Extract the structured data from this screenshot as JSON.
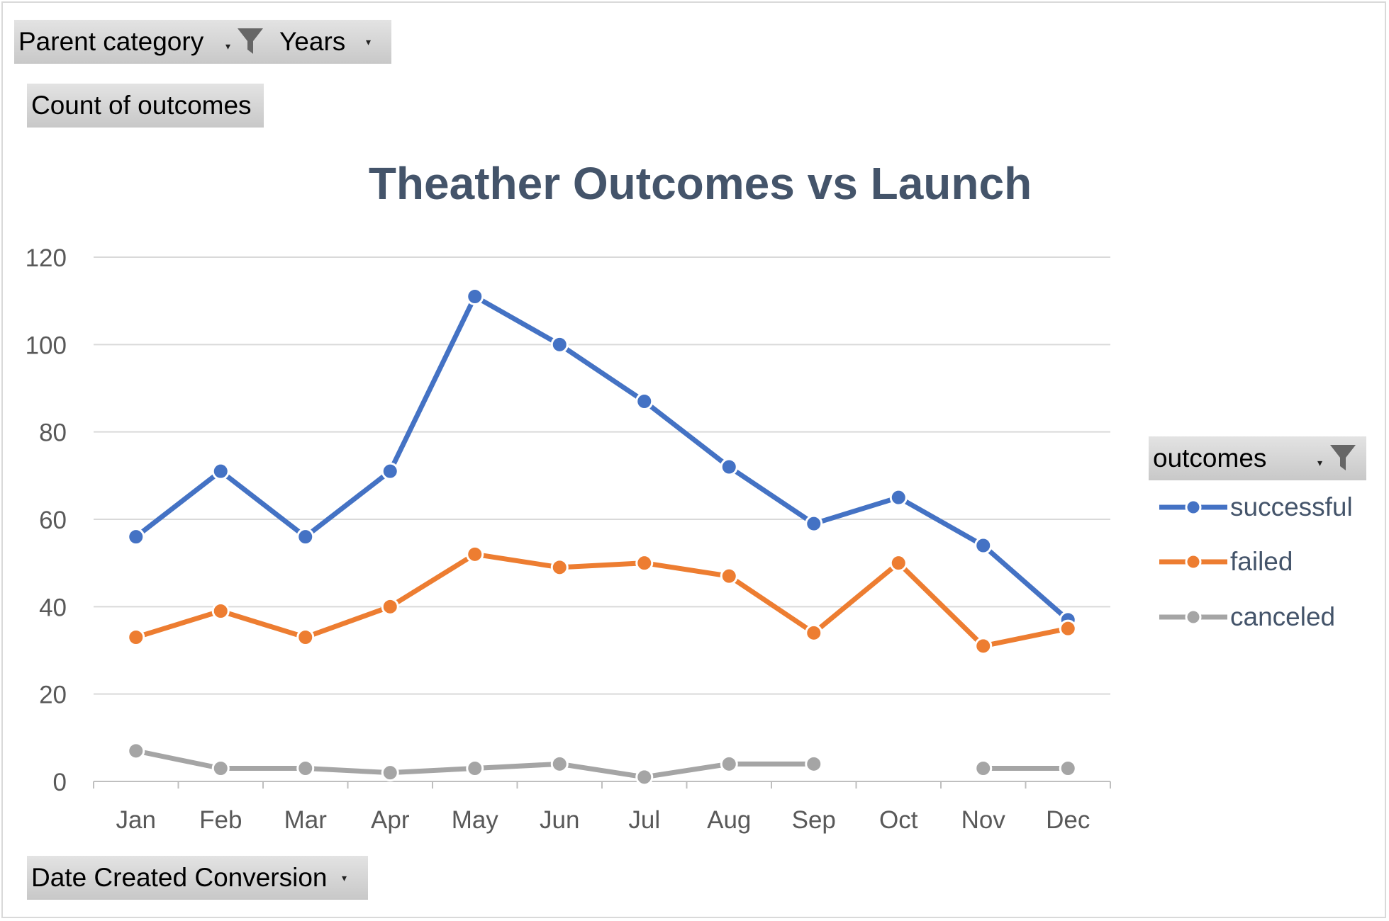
{
  "filters": {
    "parent_category_label": "Parent category",
    "years_label": "Years",
    "values_label": "Count of outcomes",
    "axis_field_label": "Date Created Conversion",
    "legend_field_label": "outcomes"
  },
  "icons": {
    "filter": "funnel-icon",
    "dropdown": "dropdown-arrow-icon"
  },
  "chart_data": {
    "type": "line",
    "title": "Theather Outcomes vs Launch",
    "xlabel": "",
    "ylabel": "",
    "categories": [
      "Jan",
      "Feb",
      "Mar",
      "Apr",
      "May",
      "Jun",
      "Jul",
      "Aug",
      "Sep",
      "Oct",
      "Nov",
      "Dec"
    ],
    "ylim": [
      0,
      120
    ],
    "yticks": [
      0,
      20,
      40,
      60,
      80,
      100,
      120
    ],
    "grid": true,
    "legend_position": "right",
    "series": [
      {
        "name": "successful",
        "color": "#4472c4",
        "values": [
          56,
          71,
          56,
          71,
          111,
          100,
          87,
          72,
          59,
          65,
          54,
          37
        ]
      },
      {
        "name": "failed",
        "color": "#ed7d31",
        "values": [
          33,
          39,
          33,
          40,
          52,
          49,
          50,
          47,
          34,
          50,
          31,
          35
        ]
      },
      {
        "name": "canceled",
        "color": "#a5a5a5",
        "values": [
          7,
          3,
          3,
          2,
          3,
          4,
          1,
          4,
          4,
          null,
          3,
          3
        ]
      }
    ]
  }
}
